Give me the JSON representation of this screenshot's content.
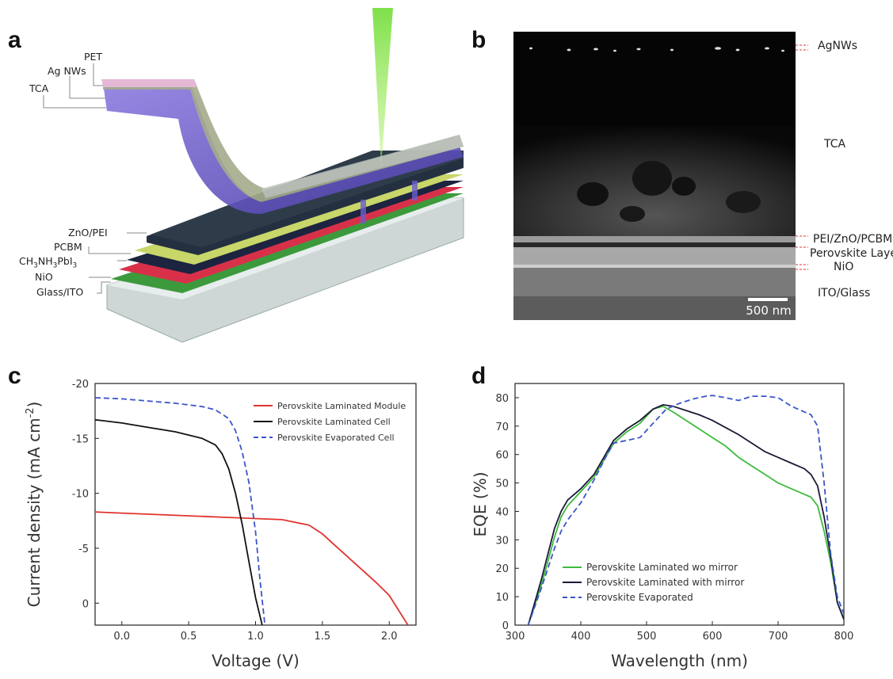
{
  "panel_labels": {
    "a": "a",
    "b": "b",
    "c": "c",
    "d": "d"
  },
  "panel_a": {
    "layer_labels_top": [
      "PET",
      "Ag NWs",
      "TCA"
    ],
    "layer_labels_bottom": [
      "ZnO/PEI",
      "PCBM",
      "CH3NH3PbI3",
      "NiO",
      "Glass/ITO"
    ]
  },
  "panel_b": {
    "layer_labels": [
      "AgNWs",
      "TCA",
      "PEI/ZnO/PCBM",
      "Perovskite Layer",
      "NiO",
      "ITO/Glass"
    ],
    "scale_bar": "500 nm"
  },
  "colors": {
    "red": "#e0342f",
    "black": "#111111",
    "blue_dash": "#3a56c8",
    "green": "#3dbb3d",
    "navy": "#1a1a36"
  },
  "chart_data": [
    {
      "type": "line",
      "panel": "c",
      "xlabel": "Voltage (V)",
      "ylabel": "Current density (mA cm-2)",
      "xlim": [
        -0.2,
        2.2
      ],
      "ylim": [
        -20,
        2
      ],
      "y_inverted": true,
      "xticks": [
        "0.0",
        "0.5",
        "1.0",
        "1.5",
        "2.0"
      ],
      "yticks": [
        "-20",
        "-15",
        "-10",
        "-5",
        "0"
      ],
      "legend_position": "top-right",
      "series": [
        {
          "name": "Perovskite Laminated Module",
          "color": "#e0342f",
          "style": "solid",
          "x": [
            -0.2,
            0.0,
            0.4,
            0.8,
            1.2,
            1.4,
            1.5,
            1.6,
            1.7,
            1.8,
            1.9,
            2.0,
            2.14
          ],
          "y": [
            -8.3,
            -8.2,
            -8.0,
            -7.8,
            -7.6,
            -7.1,
            -6.3,
            -5.2,
            -4.1,
            -3.0,
            -1.9,
            -0.7,
            2.0
          ]
        },
        {
          "name": "Perovskite Laminated Cell",
          "color": "#111111",
          "style": "solid",
          "x": [
            -0.2,
            0.0,
            0.2,
            0.4,
            0.6,
            0.7,
            0.75,
            0.8,
            0.85,
            0.9,
            0.95,
            1.0,
            1.05
          ],
          "y": [
            -16.7,
            -16.4,
            -16.0,
            -15.6,
            -15.0,
            -14.4,
            -13.6,
            -12.2,
            -10.0,
            -7.2,
            -3.8,
            -0.5,
            2.0
          ]
        },
        {
          "name": "Perovskite Evaporated Cell",
          "color": "#3a56c8",
          "style": "dashed",
          "x": [
            -0.2,
            0.0,
            0.2,
            0.4,
            0.6,
            0.7,
            0.8,
            0.85,
            0.9,
            0.95,
            1.0,
            1.03,
            1.07
          ],
          "y": [
            -18.7,
            -18.6,
            -18.4,
            -18.2,
            -17.9,
            -17.6,
            -16.8,
            -15.7,
            -13.8,
            -11.0,
            -6.5,
            -2.5,
            2.0
          ]
        }
      ]
    },
    {
      "type": "line",
      "panel": "d",
      "xlabel": "Wavelength (nm)",
      "ylabel": "EQE (%)",
      "xlim": [
        300,
        800
      ],
      "ylim": [
        0,
        85
      ],
      "xticks": [
        "300",
        "400",
        "500",
        "600",
        "700",
        "800"
      ],
      "yticks": [
        "0",
        "10",
        "20",
        "30",
        "40",
        "50",
        "60",
        "70",
        "80"
      ],
      "legend_position": "bottom-left",
      "series": [
        {
          "name": "Perovskite Laminated wo mirror",
          "color": "#3dbb3d",
          "style": "solid",
          "x": [
            320,
            340,
            360,
            370,
            380,
            400,
            420,
            440,
            450,
            470,
            490,
            510,
            525,
            540,
            560,
            580,
            600,
            620,
            640,
            660,
            680,
            700,
            720,
            740,
            750,
            760,
            770,
            780,
            790,
            800
          ],
          "y": [
            0,
            14,
            31,
            38,
            42,
            47,
            52,
            60,
            64,
            68,
            71,
            76,
            77,
            75,
            72,
            69,
            66,
            63,
            59,
            56,
            53,
            50,
            48,
            46,
            45,
            42,
            33,
            22,
            8,
            2
          ]
        },
        {
          "name": "Perovskite Laminated with mirror",
          "color": "#1a1a36",
          "style": "solid",
          "x": [
            320,
            340,
            360,
            370,
            380,
            400,
            420,
            440,
            450,
            470,
            490,
            510,
            525,
            540,
            560,
            580,
            600,
            620,
            640,
            660,
            680,
            700,
            720,
            740,
            750,
            760,
            770,
            780,
            790,
            800
          ],
          "y": [
            0,
            16,
            34,
            40,
            44,
            48,
            53,
            61,
            65,
            69,
            72,
            76,
            77.5,
            77,
            75.5,
            74,
            72,
            69.5,
            67,
            64,
            61,
            59,
            57,
            55,
            53,
            49,
            38,
            24,
            8,
            2
          ]
        },
        {
          "name": "Perovskite Evaporated",
          "color": "#3a56c8",
          "style": "dashed",
          "x": [
            320,
            340,
            360,
            370,
            380,
            400,
            420,
            440,
            450,
            470,
            490,
            510,
            530,
            550,
            570,
            590,
            600,
            620,
            640,
            660,
            680,
            700,
            720,
            740,
            750,
            760,
            770,
            780,
            790,
            800
          ],
          "y": [
            0,
            13,
            27,
            33,
            37,
            43,
            51,
            60,
            64,
            65,
            66,
            71,
            76,
            78,
            79.5,
            80.5,
            80.8,
            80,
            79,
            80.5,
            80.5,
            80,
            77,
            75,
            74,
            70,
            50,
            25,
            10,
            4
          ]
        }
      ]
    }
  ]
}
